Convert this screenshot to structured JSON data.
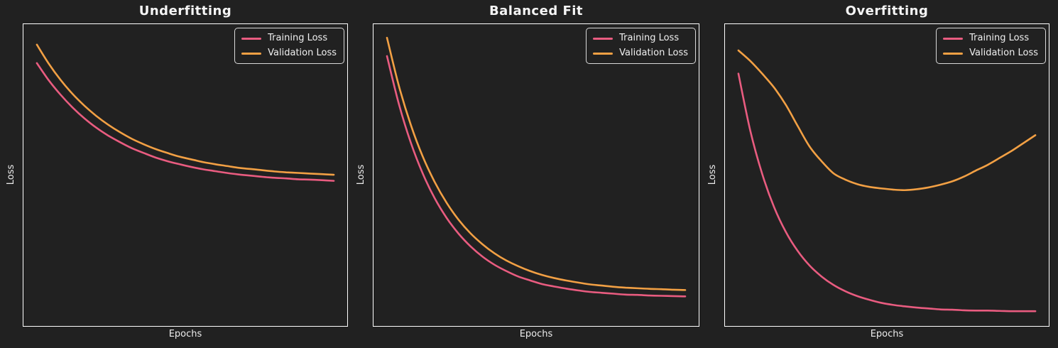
{
  "figure": {
    "background_color": "#212121",
    "spine_color": "#ffffff",
    "text_color": "#f0f0f0",
    "training_color": "#E95C80",
    "validation_color": "#F2A044"
  },
  "chart_data": [
    {
      "type": "line",
      "title": "Underfitting",
      "xlabel": "Epochs",
      "ylabel": "Loss",
      "x_range": [
        0,
        100
      ],
      "y_range": [
        0,
        1
      ],
      "grid": false,
      "legend_position": "upper right",
      "x": [
        0,
        4,
        8,
        12,
        16,
        20,
        24,
        28,
        32,
        36,
        40,
        44,
        48,
        52,
        56,
        60,
        64,
        68,
        72,
        76,
        80,
        84,
        88,
        92,
        96,
        100
      ],
      "series": [
        {
          "name": "Training Loss",
          "color": "#E95C80",
          "values": [
            0.871,
            0.814,
            0.766,
            0.724,
            0.688,
            0.657,
            0.631,
            0.609,
            0.589,
            0.573,
            0.558,
            0.546,
            0.536,
            0.527,
            0.519,
            0.513,
            0.507,
            0.502,
            0.498,
            0.494,
            0.491,
            0.489,
            0.486,
            0.485,
            0.483,
            0.481
          ]
        },
        {
          "name": "Validation Loss",
          "color": "#F2A044",
          "values": [
            0.932,
            0.869,
            0.815,
            0.769,
            0.73,
            0.696,
            0.667,
            0.642,
            0.62,
            0.602,
            0.586,
            0.573,
            0.561,
            0.552,
            0.543,
            0.536,
            0.53,
            0.524,
            0.52,
            0.516,
            0.512,
            0.509,
            0.507,
            0.505,
            0.503,
            0.501
          ]
        }
      ]
    },
    {
      "type": "line",
      "title": "Balanced Fit",
      "xlabel": "Epochs",
      "ylabel": "Loss",
      "x_range": [
        0,
        100
      ],
      "y_range": [
        0,
        1
      ],
      "grid": false,
      "legend_position": "upper right",
      "x": [
        0,
        4,
        8,
        12,
        16,
        20,
        24,
        28,
        32,
        36,
        40,
        44,
        48,
        52,
        56,
        60,
        64,
        68,
        72,
        76,
        80,
        84,
        88,
        92,
        96,
        100
      ],
      "series": [
        {
          "name": "Training Loss",
          "color": "#E95C80",
          "values": [
            0.894,
            0.735,
            0.607,
            0.505,
            0.423,
            0.358,
            0.306,
            0.264,
            0.23,
            0.203,
            0.182,
            0.164,
            0.151,
            0.139,
            0.131,
            0.124,
            0.118,
            0.113,
            0.11,
            0.107,
            0.104,
            0.103,
            0.101,
            0.1,
            0.099,
            0.098
          ]
        },
        {
          "name": "Validation Loss",
          "color": "#F2A044",
          "values": [
            0.955,
            0.795,
            0.666,
            0.561,
            0.477,
            0.408,
            0.352,
            0.307,
            0.271,
            0.241,
            0.217,
            0.198,
            0.182,
            0.169,
            0.159,
            0.151,
            0.144,
            0.138,
            0.134,
            0.13,
            0.127,
            0.125,
            0.123,
            0.122,
            0.12,
            0.119
          ]
        }
      ]
    },
    {
      "type": "line",
      "title": "Overfitting",
      "xlabel": "Epochs",
      "ylabel": "Loss",
      "x_range": [
        0,
        100
      ],
      "y_range": [
        0,
        1
      ],
      "grid": false,
      "legend_position": "upper right",
      "x": [
        0,
        4,
        8,
        12,
        16,
        20,
        24,
        28,
        32,
        36,
        40,
        44,
        48,
        52,
        56,
        60,
        64,
        68,
        72,
        76,
        80,
        84,
        88,
        92,
        96,
        100
      ],
      "series": [
        {
          "name": "Training Loss",
          "color": "#E95C80",
          "values": [
            0.836,
            0.647,
            0.504,
            0.394,
            0.311,
            0.248,
            0.2,
            0.164,
            0.136,
            0.115,
            0.099,
            0.087,
            0.077,
            0.07,
            0.065,
            0.061,
            0.058,
            0.055,
            0.054,
            0.052,
            0.051,
            0.051,
            0.05,
            0.049,
            0.049,
            0.049
          ]
        },
        {
          "name": "Validation Loss",
          "color": "#F2A044",
          "values": [
            0.913,
            0.878,
            0.836,
            0.79,
            0.732,
            0.662,
            0.594,
            0.546,
            0.506,
            0.485,
            0.47,
            0.461,
            0.456,
            0.452,
            0.45,
            0.453,
            0.459,
            0.468,
            0.479,
            0.495,
            0.515,
            0.534,
            0.557,
            0.58,
            0.606,
            0.632
          ]
        }
      ]
    }
  ]
}
